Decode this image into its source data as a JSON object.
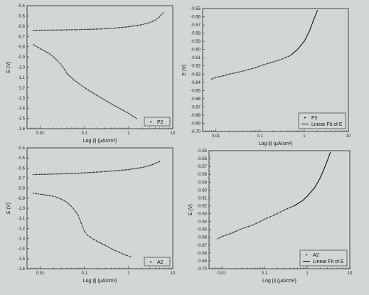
{
  "colors": {
    "background": "#d3d6d7",
    "axis": "#222222",
    "data": "#111111"
  },
  "chart_data": [
    {
      "type": "scatter",
      "xlabel": "Log |i| (μA/cm²)",
      "ylabel": "E (V)",
      "xscale": "log",
      "xlim": [
        0.005,
        10
      ],
      "ylim": [
        -1.6,
        -0.4
      ],
      "x_ticks": [
        "0.01",
        "0.1",
        "1",
        "10"
      ],
      "y_ticks": [
        "-0.4",
        "-0.5",
        "-0.6",
        "-0.7",
        "-0.8",
        "-0.9",
        "-1.0",
        "-1.1",
        "-1.2",
        "-1.3",
        "-1.4",
        "-1.5",
        "-1.6"
      ],
      "legend": {
        "position": "bottom-right",
        "entries": [
          "P2"
        ]
      },
      "series": [
        {
          "name": "P2",
          "x": [
            0.007,
            0.02,
            0.05,
            0.1,
            0.2,
            0.5,
            1,
            2,
            3,
            4,
            5,
            6
          ],
          "y": [
            -0.64,
            -0.638,
            -0.635,
            -0.632,
            -0.628,
            -0.618,
            -0.605,
            -0.585,
            -0.565,
            -0.54,
            -0.51,
            -0.47
          ]
        },
        {
          "name": "P2",
          "x": [
            0.007,
            0.01,
            0.015,
            0.02,
            0.025,
            0.03,
            0.035,
            0.04,
            0.05,
            0.06,
            0.08,
            0.1,
            0.2,
            0.5,
            1,
            1.5
          ],
          "y": [
            -0.78,
            -0.82,
            -0.86,
            -0.9,
            -0.94,
            -0.98,
            -1.02,
            -1.06,
            -1.1,
            -1.13,
            -1.17,
            -1.2,
            -1.28,
            -1.38,
            -1.45,
            -1.5
          ]
        }
      ]
    },
    {
      "type": "scatter",
      "xlabel": "Log |i| (μA/cm²)",
      "ylabel": "E (V)",
      "xscale": "log",
      "xlim": [
        0.005,
        10
      ],
      "ylim": [
        -0.7,
        -0.55
      ],
      "x_ticks": [
        "0.01",
        "0.1",
        "1",
        "10"
      ],
      "y_ticks": [
        "-0.55",
        "-0.56",
        "-0.57",
        "-0.58",
        "-0.59",
        "-0.60",
        "-0.61",
        "-0.62",
        "-0.63",
        "-0.64",
        "-0.65",
        "-0.66",
        "-0.67",
        "-0.68",
        "-0.69",
        "-0.70"
      ],
      "legend": {
        "position": "bottom-right",
        "entries": [
          "P2",
          "Linear Fit of E"
        ]
      },
      "series": [
        {
          "name": "P2",
          "x": [
            0.008,
            0.01,
            0.015,
            0.02,
            0.03,
            0.05,
            0.08,
            0.1,
            0.15,
            0.2,
            0.3,
            0.5
          ],
          "y": [
            -0.636,
            -0.634,
            -0.632,
            -0.63,
            -0.628,
            -0.625,
            -0.622,
            -0.62,
            -0.617,
            -0.615,
            -0.612,
            -0.607
          ]
        },
        {
          "name": "Linear Fit of E",
          "x": [
            0.5,
            0.7,
            1,
            1.3,
            1.6,
            2
          ],
          "y": [
            -0.607,
            -0.6,
            -0.59,
            -0.578,
            -0.565,
            -0.552
          ]
        }
      ]
    },
    {
      "type": "scatter",
      "xlabel": "Log |i| (μA/cm²)",
      "ylabel": "E (V)",
      "xscale": "log",
      "xlim": [
        0.005,
        10
      ],
      "ylim": [
        -1.6,
        -0.4
      ],
      "x_ticks": [
        "0.01",
        "0.1",
        "1",
        "10"
      ],
      "y_ticks": [
        "-0.4",
        "-0.5",
        "-0.6",
        "-0.7",
        "-0.8",
        "-0.9",
        "-1.0",
        "-1.1",
        "-1.2",
        "-1.3",
        "-1.4",
        "-1.5",
        "-1.6"
      ],
      "legend": {
        "position": "bottom-right",
        "entries": [
          "A2"
        ]
      },
      "series": [
        {
          "name": "A2",
          "x": [
            0.007,
            0.02,
            0.05,
            0.1,
            0.2,
            0.5,
            1,
            2,
            3,
            4,
            5
          ],
          "y": [
            -0.665,
            -0.66,
            -0.655,
            -0.648,
            -0.64,
            -0.628,
            -0.615,
            -0.595,
            -0.575,
            -0.555,
            -0.535
          ]
        },
        {
          "name": "A2",
          "x": [
            0.007,
            0.01,
            0.02,
            0.03,
            0.04,
            0.05,
            0.06,
            0.07,
            0.08,
            0.09,
            0.1,
            0.12,
            0.15,
            0.2,
            0.3,
            0.5,
            0.8,
            1.1
          ],
          "y": [
            -0.85,
            -0.86,
            -0.88,
            -0.91,
            -0.94,
            -0.98,
            -1.02,
            -1.06,
            -1.12,
            -1.18,
            -1.23,
            -1.27,
            -1.3,
            -1.33,
            -1.37,
            -1.42,
            -1.46,
            -1.48
          ]
        }
      ]
    },
    {
      "type": "scatter",
      "xlabel": "Log |i| (μA/cm²)",
      "ylabel": "E (V)",
      "xscale": "log",
      "xlim": [
        0.005,
        10
      ],
      "ylim": [
        -0.7,
        -0.55
      ],
      "x_ticks": [
        "0.01",
        "0.1",
        "1",
        "10"
      ],
      "y_ticks": [
        "-0.55",
        "-0.56",
        "-0.57",
        "-0.58",
        "-0.59",
        "-0.60",
        "-0.61",
        "-0.62",
        "-0.63",
        "-0.64",
        "-0.65",
        "-0.66",
        "-0.67",
        "-0.68",
        "-0.69",
        "-0.70"
      ],
      "legend": {
        "position": "bottom-right",
        "entries": [
          "A2",
          "Linear Fit of E"
        ]
      },
      "series": [
        {
          "name": "A2",
          "x": [
            0.008,
            0.01,
            0.015,
            0.02,
            0.03,
            0.05,
            0.08,
            0.1,
            0.15,
            0.2,
            0.3,
            0.5
          ],
          "y": [
            -0.662,
            -0.659,
            -0.656,
            -0.653,
            -0.649,
            -0.645,
            -0.64,
            -0.637,
            -0.633,
            -0.63,
            -0.625,
            -0.62
          ]
        },
        {
          "name": "Linear Fit of E",
          "x": [
            0.5,
            0.8,
            1,
            1.5,
            2,
            2.5,
            3,
            3.5
          ],
          "y": [
            -0.62,
            -0.613,
            -0.608,
            -0.597,
            -0.585,
            -0.573,
            -0.562,
            -0.552
          ]
        }
      ]
    }
  ]
}
